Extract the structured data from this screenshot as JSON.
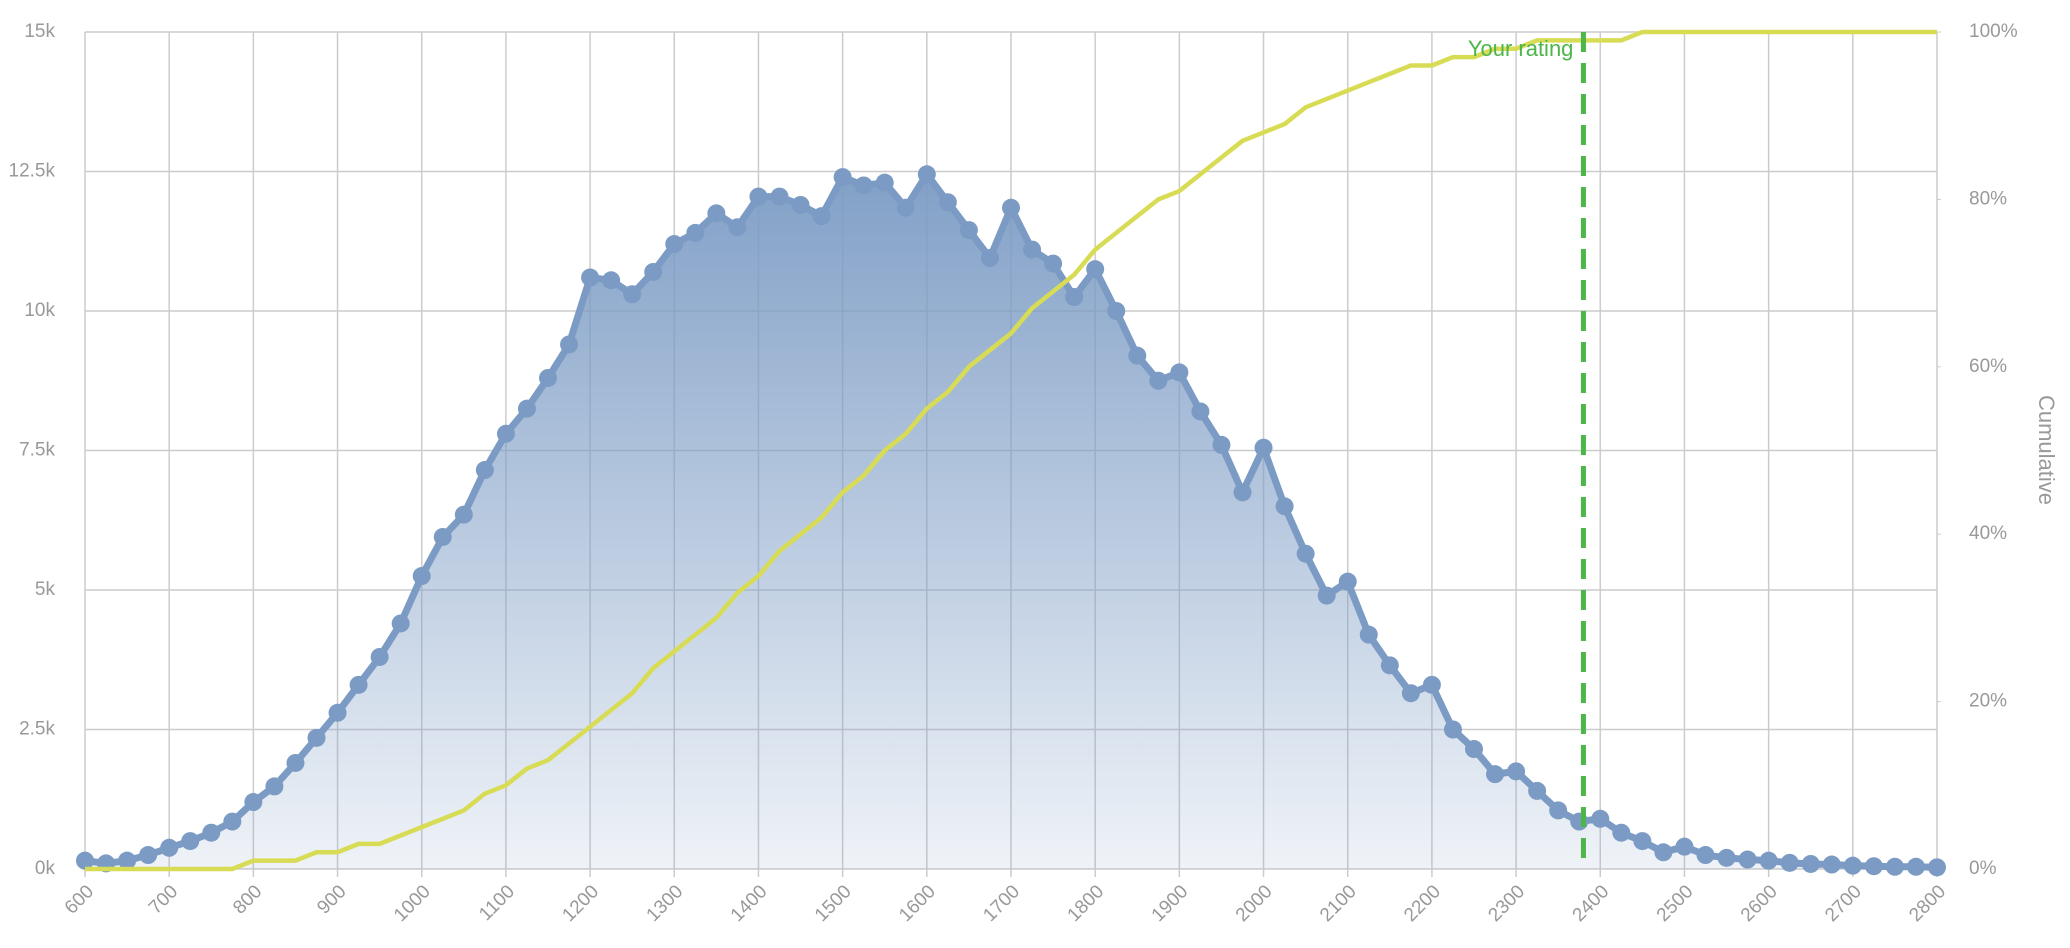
{
  "chart_data": {
    "type": "area-line",
    "x": [
      600,
      625,
      650,
      675,
      700,
      725,
      750,
      775,
      800,
      825,
      850,
      875,
      900,
      925,
      950,
      975,
      1000,
      1025,
      1050,
      1075,
      1100,
      1125,
      1150,
      1175,
      1200,
      1225,
      1250,
      1275,
      1300,
      1325,
      1350,
      1375,
      1400,
      1425,
      1450,
      1475,
      1500,
      1525,
      1550,
      1575,
      1600,
      1625,
      1650,
      1675,
      1700,
      1725,
      1750,
      1775,
      1800,
      1825,
      1850,
      1875,
      1900,
      1925,
      1950,
      1975,
      2000,
      2025,
      2050,
      2075,
      2100,
      2125,
      2150,
      2175,
      2200,
      2225,
      2250,
      2275,
      2300,
      2325,
      2350,
      2375,
      2400,
      2425,
      2450,
      2475,
      2500,
      2525,
      2550,
      2575,
      2600,
      2625,
      2650,
      2675,
      2700,
      2725,
      2750,
      2775,
      2800
    ],
    "series": [
      {
        "color": "#7b9bc4",
        "values": [
          150,
          100,
          150,
          250,
          380,
          500,
          650,
          850,
          1200,
          1480,
          1900,
          2350,
          2800,
          3300,
          3800,
          4400,
          5250,
          5950,
          6350,
          7150,
          7800,
          8250,
          8800,
          9400,
          10600,
          10550,
          10300,
          10700,
          11200,
          11400,
          11750,
          11500,
          12050,
          12050,
          11900,
          11700,
          12400,
          12250,
          12300,
          11850,
          12450,
          11950,
          11450,
          10950,
          11850,
          11100,
          10850,
          10250,
          10750,
          10000,
          9200,
          8750,
          8900,
          8200,
          7600,
          6750,
          7550,
          6500,
          5650,
          4900,
          5150,
          4200,
          3650,
          3150,
          3300,
          2500,
          2150,
          1700,
          1750,
          1400,
          1050,
          850,
          900,
          650,
          500,
          300,
          400,
          250,
          200,
          170,
          150,
          110,
          90,
          80,
          60,
          50,
          40,
          40,
          30
        ]
      },
      {
        "color": "#d8dc55",
        "axis": "y2",
        "values": [
          0,
          0,
          0,
          0,
          0,
          0,
          0,
          0,
          1,
          1,
          1,
          2,
          2,
          3,
          3,
          4,
          5,
          6,
          7,
          9,
          10,
          12,
          13,
          15,
          17,
          19,
          21,
          24,
          26,
          28,
          30,
          33,
          35,
          38,
          40,
          42,
          45,
          47,
          50,
          52,
          55,
          57,
          60,
          62,
          64,
          67,
          69,
          71,
          74,
          76,
          78,
          80,
          81,
          83,
          85,
          87,
          88,
          89,
          91,
          92,
          93,
          94,
          95,
          96,
          96,
          97,
          97,
          98,
          98,
          99,
          99,
          99,
          99,
          99,
          100,
          100,
          100,
          100,
          100,
          100,
          100,
          100,
          100,
          100,
          100,
          100,
          100,
          100,
          100
        ]
      }
    ],
    "xlim": [
      600,
      2800
    ],
    "xticks": [
      600,
      700,
      800,
      900,
      1000,
      1100,
      1200,
      1300,
      1400,
      1500,
      1600,
      1700,
      1800,
      1900,
      2000,
      2100,
      2200,
      2300,
      2400,
      2500,
      2600,
      2700,
      2800
    ],
    "ylim": [
      0,
      15000
    ],
    "yticks": [
      {
        "value": 0,
        "label": "0k"
      },
      {
        "value": 2500,
        "label": "2.5k"
      },
      {
        "value": 5000,
        "label": "5k"
      },
      {
        "value": 7500,
        "label": "7.5k"
      },
      {
        "value": 10000,
        "label": "10k"
      },
      {
        "value": 12500,
        "label": "12.5k"
      },
      {
        "value": 15000,
        "label": "15k"
      }
    ],
    "y2lim": [
      0,
      100
    ],
    "y2ticks": [
      {
        "value": 0,
        "label": "0%"
      },
      {
        "value": 20,
        "label": "20%"
      },
      {
        "value": 40,
        "label": "40%"
      },
      {
        "value": 60,
        "label": "60%"
      },
      {
        "value": 80,
        "label": "80%"
      },
      {
        "value": 100,
        "label": "100%"
      }
    ],
    "y2label": "Cumulative",
    "annotation": {
      "text": "Your rating",
      "x": 2380,
      "color": "#4cb648"
    },
    "grid": true
  }
}
